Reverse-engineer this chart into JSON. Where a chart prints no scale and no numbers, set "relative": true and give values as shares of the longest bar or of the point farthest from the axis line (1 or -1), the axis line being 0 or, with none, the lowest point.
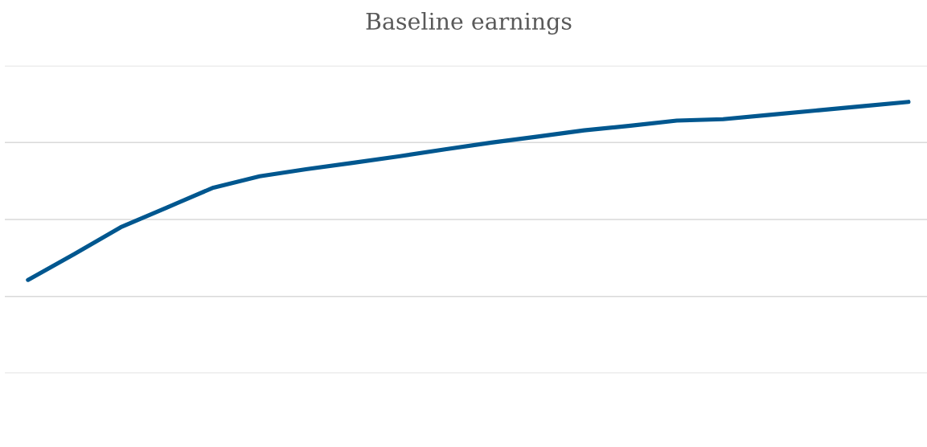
{
  "chart_data": {
    "type": "line",
    "title": "Baseline earnings",
    "categories": [
      null,
      null,
      null,
      null,
      null,
      null,
      null,
      null,
      null,
      null,
      null,
      null,
      null,
      null,
      null,
      null,
      null,
      null,
      null,
      null
    ],
    "relative": true,
    "series": [
      {
        "color": "#00578f",
        "values": [
          0.344,
          0.439,
          0.538,
          0.611,
          0.684,
          0.726,
          0.752,
          0.775,
          0.799,
          0.825,
          0.85,
          0.872,
          0.895,
          0.912,
          0.931,
          0.936,
          0.952,
          0.968,
          0.984,
          1
        ]
      }
    ],
    "grid": "y",
    "line_style": "solid"
  }
}
